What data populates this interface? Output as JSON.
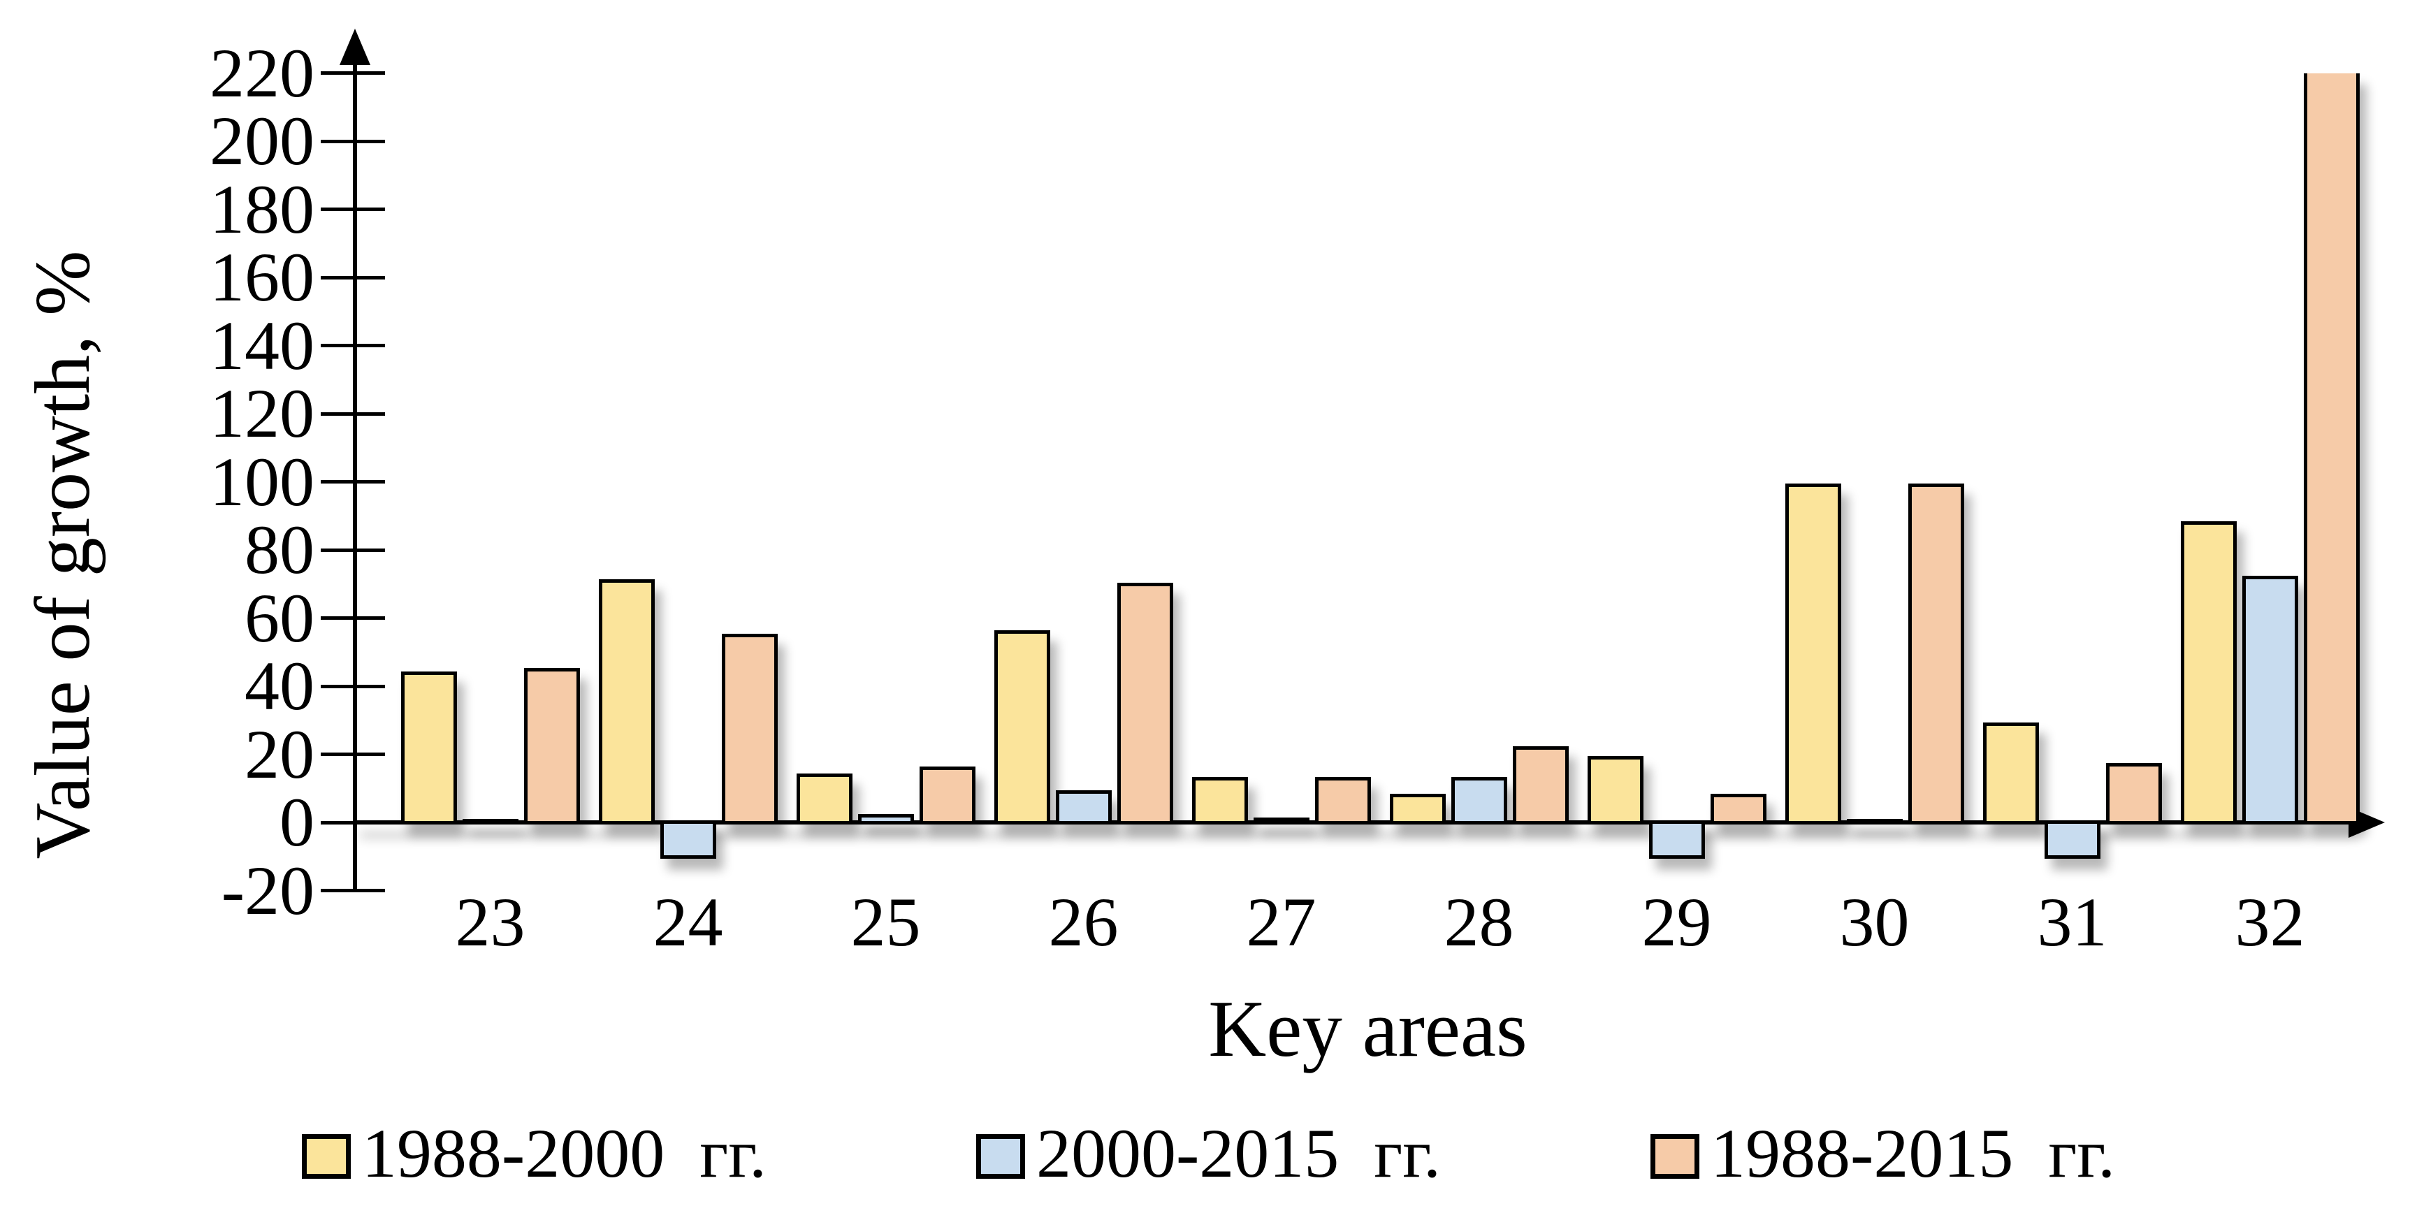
{
  "y_axis": {
    "label": "Value of growth, %",
    "tick_labels": [
      "220",
      "200",
      "180",
      "160",
      "140",
      "120",
      "100",
      "80",
      "60",
      "40",
      "20",
      "0",
      "-20"
    ],
    "max": 220,
    "min": -20,
    "step": 20
  },
  "x_axis": {
    "label": "Key areas"
  },
  "legend": {
    "items": [
      {
        "label": "1988-2000  гг.",
        "color": "#FBE49B"
      },
      {
        "label": "2000-2015  гг.",
        "color": "#C8DCEF"
      },
      {
        "label": "1988-2015  гг.",
        "color": "#F6CBA8"
      }
    ]
  },
  "chart_data": {
    "type": "bar",
    "title": "",
    "xlabel": "Key areas",
    "ylabel": "Value of growth, %",
    "categories": [
      "23",
      "24",
      "25",
      "26",
      "27",
      "28",
      "29",
      "30",
      "31",
      "32"
    ],
    "series": [
      {
        "name": "1988-2000 гг.",
        "color": "#FBE49B",
        "values": [
          44,
          71,
          14,
          56,
          13,
          8,
          19,
          99,
          29,
          88
        ]
      },
      {
        "name": "2000-2015 гг.",
        "color": "#C8DCEF",
        "values": [
          0,
          -10,
          2,
          9,
          1,
          13,
          -10,
          0,
          -10,
          72
        ]
      },
      {
        "name": "1988-2015 гг.",
        "color": "#F6CBA8",
        "values": [
          45,
          55,
          16,
          70,
          13,
          22,
          8,
          99,
          17,
          232
        ]
      }
    ],
    "clipped_values": [
      {
        "series": "1988-2015 гг.",
        "category": "32",
        "estimated": true,
        "note": "bar exceeds axis maximum and is drawn clipped at top of plot (no top border)"
      }
    ],
    "ylim": [
      -20,
      220
    ],
    "ytick_step": 20,
    "grid": false,
    "legend_position": "bottom",
    "bar_outline_color": "#000000"
  }
}
